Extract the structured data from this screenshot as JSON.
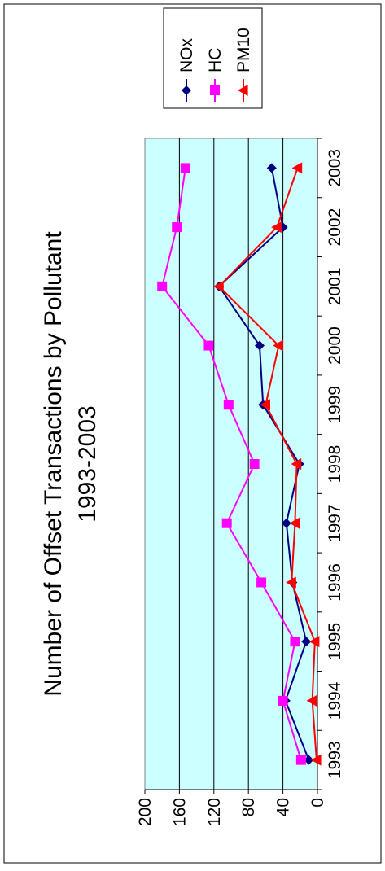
{
  "chart_data": {
    "type": "line",
    "title": "Number of Offset Transactions by Pollutant",
    "subtitle": "1993-2003",
    "xlabel": "",
    "ylabel": "",
    "categories": [
      "1993",
      "1994",
      "1995",
      "1996",
      "1997",
      "1998",
      "1999",
      "2000",
      "2001",
      "2002",
      "2003"
    ],
    "ylim": [
      0,
      200
    ],
    "yticks": [
      0,
      40,
      80,
      120,
      160,
      200
    ],
    "grid": true,
    "legend_position": "top-right",
    "plot_background": "#ccffff",
    "series": [
      {
        "name": "NOx",
        "color": "#000080",
        "marker": "diamond",
        "values": [
          10,
          37,
          13,
          29,
          36,
          21,
          63,
          67,
          114,
          40,
          53
        ]
      },
      {
        "name": "HC",
        "color": "#ff00ff",
        "marker": "square",
        "values": [
          19,
          40,
          26,
          65,
          105,
          73,
          103,
          126,
          180,
          163,
          153
        ]
      },
      {
        "name": "PM10",
        "color": "#ff0000",
        "marker": "triangle",
        "values": [
          1,
          6,
          3,
          30,
          26,
          24,
          60,
          45,
          114,
          47,
          23
        ]
      }
    ]
  }
}
